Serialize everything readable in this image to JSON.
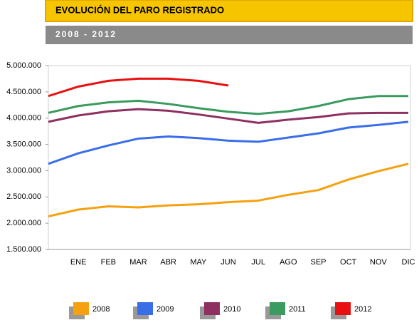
{
  "chart_data": {
    "type": "line",
    "title": "EVOLUCIÓN DEL PARO REGISTRADO",
    "subtitle": "2008 - 2012",
    "categories": [
      null,
      "ENE",
      "FEB",
      "MAR",
      "ABR",
      "MAY",
      "JUN",
      "JUL",
      "AGO",
      "SEP",
      "OCT",
      "NOV",
      "DIC"
    ],
    "series": [
      {
        "name": "2008",
        "color": "#f5a10f",
        "values": [
          2130000,
          2260000,
          2320000,
          2300000,
          2340000,
          2360000,
          2400000,
          2430000,
          2540000,
          2630000,
          2830000,
          2990000,
          3130000
        ]
      },
      {
        "name": "2009",
        "color": "#3a6ee8",
        "values": [
          3130000,
          3330000,
          3480000,
          3610000,
          3650000,
          3620000,
          3570000,
          3550000,
          3630000,
          3710000,
          3820000,
          3870000,
          3930000
        ]
      },
      {
        "name": "2010",
        "color": "#8e3060",
        "values": [
          3930000,
          4050000,
          4130000,
          4170000,
          4140000,
          4070000,
          3990000,
          3910000,
          3970000,
          4020000,
          4090000,
          4100000,
          4100000
        ]
      },
      {
        "name": "2011",
        "color": "#3a9a5f",
        "values": [
          4100000,
          4230000,
          4300000,
          4330000,
          4270000,
          4190000,
          4120000,
          4080000,
          4130000,
          4230000,
          4360000,
          4420000,
          4420000
        ]
      },
      {
        "name": "2012",
        "color": "#e81010",
        "values": [
          4420000,
          4600000,
          4710000,
          4750000,
          4750000,
          4710000,
          4620000,
          null,
          null,
          null,
          null,
          null,
          null
        ]
      }
    ],
    "ylim": [
      1500000,
      5000000
    ],
    "yticks": [
      {
        "value": 1500000,
        "label": "1.500.000"
      },
      {
        "value": 2000000,
        "label": "2.000.000"
      },
      {
        "value": 2500000,
        "label": "2.500.000"
      },
      {
        "value": 3000000,
        "label": "3.000.000"
      },
      {
        "value": 3500000,
        "label": "3.500.000"
      },
      {
        "value": 4000000,
        "label": "4.000.000"
      },
      {
        "value": 4500000,
        "label": "4.500.000"
      },
      {
        "value": 5000000,
        "label": "5.000.000"
      }
    ]
  }
}
